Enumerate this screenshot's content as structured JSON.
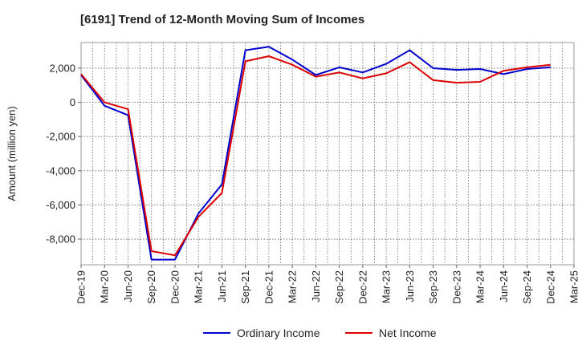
{
  "chart_data": {
    "type": "line",
    "title": "[6191]  Trend of 12-Month Moving Sum of Incomes",
    "xlabel": "",
    "ylabel": "Amount (million yen)",
    "ylim": [
      -9500,
      3500
    ],
    "yticks": [
      -8000,
      -6000,
      -4000,
      -2000,
      0,
      2000
    ],
    "ytick_labels": [
      "-8,000",
      "-6,000",
      "-4,000",
      "-2,000",
      "0",
      "2,000"
    ],
    "categories": [
      "Dec-19",
      "Mar-20",
      "Jun-20",
      "Sep-20",
      "Dec-20",
      "Mar-21",
      "Jun-21",
      "Sep-21",
      "Dec-21",
      "Mar-22",
      "Jun-22",
      "Sep-22",
      "Dec-22",
      "Mar-23",
      "Jun-23",
      "Sep-23",
      "Dec-23",
      "Mar-24",
      "Jun-24",
      "Sep-24",
      "Dec-24",
      "Mar-25"
    ],
    "grid": true,
    "legend_position": "bottom",
    "series": [
      {
        "name": "Ordinary Income",
        "color": "#0000cc",
        "values": [
          1600,
          -200,
          -750,
          -9200,
          -9200,
          -6500,
          -4800,
          3050,
          3250,
          2500,
          1600,
          2050,
          1750,
          2250,
          3050,
          2000,
          1900,
          1950,
          1650,
          1950,
          2050,
          null
        ]
      },
      {
        "name": "Net Income",
        "color": "#dd0000",
        "values": [
          1650,
          0,
          -400,
          -8700,
          -8950,
          -6700,
          -5300,
          2400,
          2700,
          2200,
          1500,
          1750,
          1400,
          1700,
          2350,
          1300,
          1150,
          1200,
          1850,
          2050,
          2200,
          null
        ]
      }
    ]
  }
}
